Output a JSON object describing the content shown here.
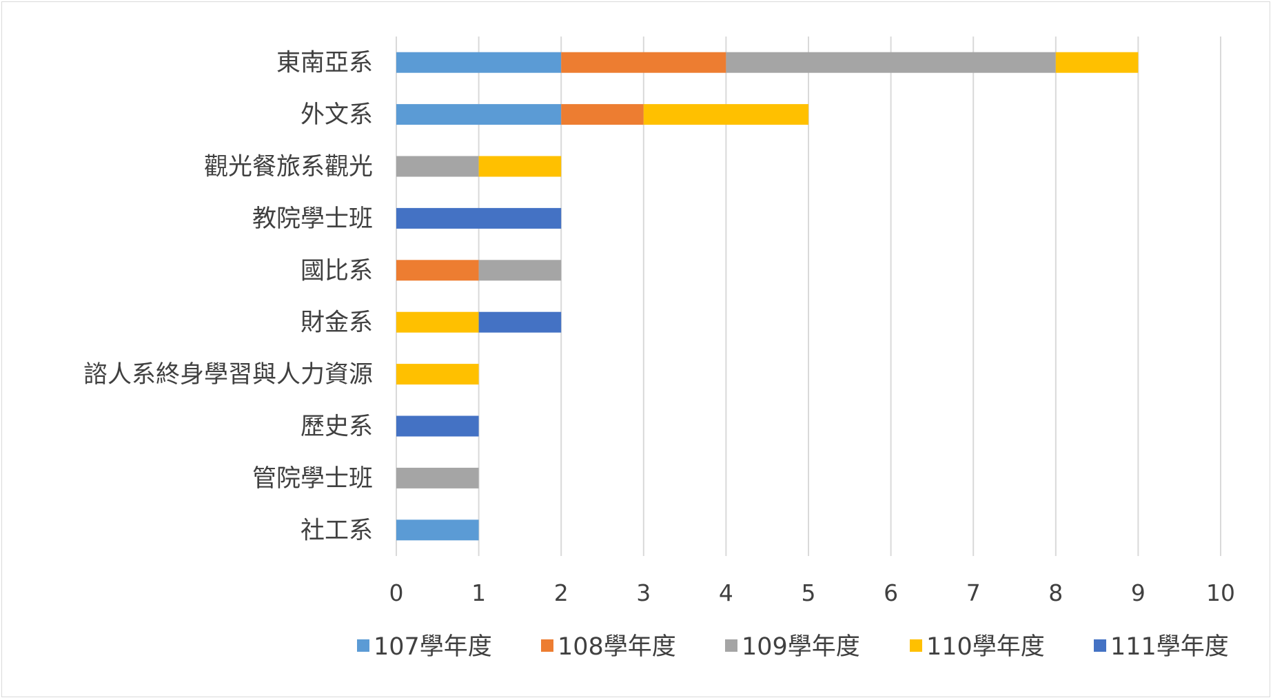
{
  "chart_data": {
    "type": "bar",
    "orientation": "horizontal",
    "stacked": true,
    "categories": [
      "東南亞系",
      "外文系",
      "觀光餐旅系觀光",
      "教院學士班",
      "國比系",
      "財金系",
      "諮人系終身學習與人力資源",
      "歷史系",
      "管院學士班",
      "社工系"
    ],
    "series": [
      {
        "name": "107學年度",
        "color": "#5B9BD5",
        "values": [
          2,
          2,
          0,
          0,
          0,
          0,
          0,
          0,
          0,
          1
        ]
      },
      {
        "name": "108學年度",
        "color": "#ED7D31",
        "values": [
          2,
          1,
          0,
          0,
          1,
          0,
          0,
          0,
          0,
          0
        ]
      },
      {
        "name": "109學年度",
        "color": "#A5A5A5",
        "values": [
          4,
          0,
          1,
          0,
          1,
          0,
          0,
          0,
          1,
          0
        ]
      },
      {
        "name": "110學年度",
        "color": "#FFC000",
        "values": [
          1,
          2,
          1,
          0,
          0,
          1,
          1,
          0,
          0,
          0
        ]
      },
      {
        "name": "111學年度",
        "color": "#4472C4",
        "values": [
          0,
          0,
          0,
          2,
          0,
          1,
          0,
          1,
          0,
          0
        ]
      }
    ],
    "xlim": [
      0,
      10
    ],
    "xticks": [
      "0",
      "1",
      "2",
      "3",
      "4",
      "5",
      "6",
      "7",
      "8",
      "9",
      "10"
    ],
    "grid": "vertical",
    "legend": "bottom"
  }
}
